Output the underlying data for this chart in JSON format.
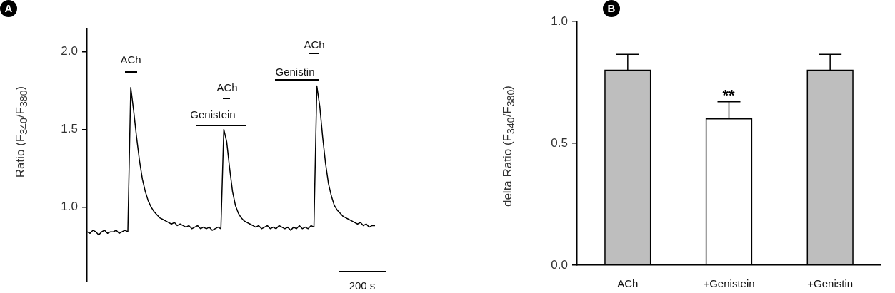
{
  "chart_data": [
    {
      "type": "line",
      "ylabel": "Ratio (F$_{340}$/F$_{380}$)",
      "ylim": [
        0.52,
        2.15
      ],
      "yticks": [
        {
          "value": 1,
          "label": "1.0"
        },
        1.5,
        {
          "value": 2,
          "label": "2.0"
        }
      ],
      "grid": false,
      "legend": false,
      "marker": "none",
      "tick_labels": "y",
      "annotations": [
        "A",
        "ACh",
        "ACh",
        "Genistein",
        "ACh",
        "Genistin",
        "200 s"
      ],
      "categories": [
        null,
        null,
        null,
        null,
        null,
        null,
        null,
        null,
        null,
        null,
        null,
        null,
        null,
        null,
        null,
        null,
        null,
        null,
        null,
        null,
        null,
        null,
        null,
        null,
        null,
        null,
        null,
        null,
        null,
        null,
        null,
        null,
        null,
        null,
        null,
        null,
        null,
        null,
        null,
        null,
        null,
        null,
        null,
        null,
        null,
        null,
        null,
        null,
        null,
        null,
        null,
        null,
        null,
        null,
        null,
        null,
        null,
        null,
        null,
        null,
        null,
        null,
        null,
        null,
        null,
        null,
        null,
        null,
        null,
        null,
        null,
        null,
        null,
        null,
        null,
        null,
        null,
        null,
        null,
        null,
        null,
        null,
        null,
        null,
        null,
        null,
        null,
        null,
        null,
        null,
        null,
        null,
        null,
        null,
        null,
        null,
        null,
        null,
        null,
        null
      ],
      "series": [
        {
          "color": "#000000",
          "values": [
            0.84,
            0.83,
            0.85,
            0.84,
            0.82,
            0.84,
            0.85,
            0.83,
            0.84,
            0.84,
            0.85,
            0.83,
            0.84,
            0.85,
            0.84,
            1.77,
            1.62,
            1.45,
            1.3,
            1.18,
            1.1,
            1.04,
            1.0,
            0.97,
            0.95,
            0.93,
            0.92,
            0.91,
            0.9,
            0.89,
            0.9,
            0.88,
            0.89,
            0.88,
            0.87,
            0.88,
            0.86,
            0.87,
            0.88,
            0.86,
            0.87,
            0.86,
            0.87,
            0.85,
            0.86,
            0.87,
            0.86,
            1.5,
            1.42,
            1.25,
            1.1,
            1.01,
            0.96,
            0.93,
            0.91,
            0.9,
            0.89,
            0.88,
            0.87,
            0.88,
            0.86,
            0.87,
            0.88,
            0.86,
            0.87,
            0.86,
            0.88,
            0.87,
            0.86,
            0.87,
            0.85,
            0.87,
            0.86,
            0.88,
            0.86,
            0.87,
            0.86,
            0.88,
            0.87,
            1.78,
            1.65,
            1.45,
            1.28,
            1.15,
            1.07,
            1.01,
            0.98,
            0.96,
            0.94,
            0.93,
            0.92,
            0.91,
            0.9,
            0.89,
            0.9,
            0.88,
            0.89,
            0.87,
            0.88,
            0.88
          ]
        }
      ]
    },
    {
      "type": "bar",
      "ylabel": "delta Ratio (F$_{340}$/F$_{380}$)",
      "categories": [
        "ACh",
        "+Genistein",
        "+Genistin"
      ],
      "values": [
        0.8,
        0.6,
        0.8
      ],
      "errors": [
        0.065,
        0.07,
        0.065
      ],
      "colors": [
        "#bebebe",
        "#ffffff",
        "#bebebe"
      ],
      "ylim": [
        0,
        1
      ],
      "yticks": [
        {
          "value": 0,
          "label": "0.0"
        },
        0.5,
        {
          "value": 1,
          "label": "1.0"
        }
      ],
      "grid": false,
      "legend": false,
      "annotations": [
        "B",
        "**"
      ]
    }
  ]
}
